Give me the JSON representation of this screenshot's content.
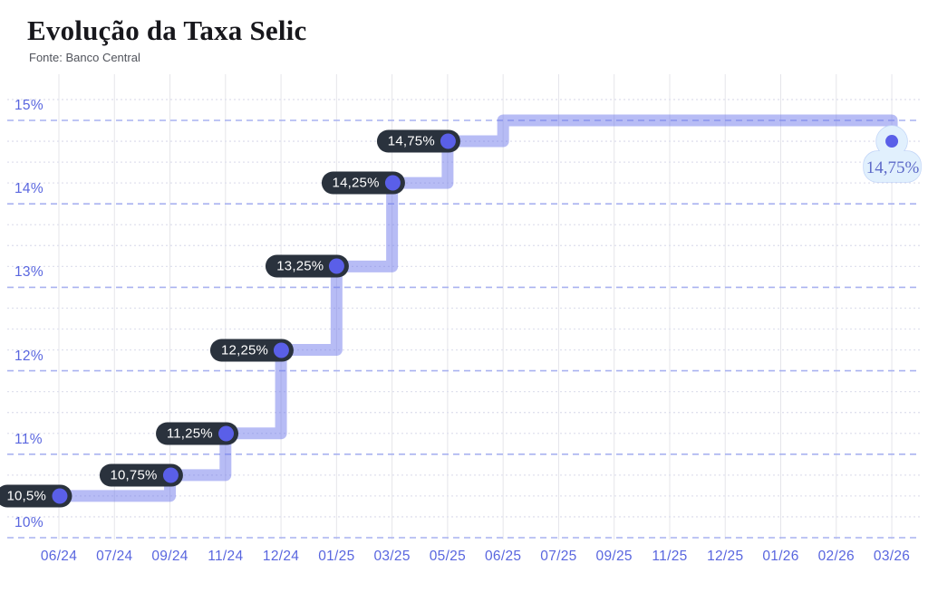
{
  "header": {
    "title": "Evolução da Taxa Selic",
    "source": "Fonte: Banco Central"
  },
  "chart_data": {
    "type": "line",
    "subtype": "step-after",
    "title": "Evolução da Taxa Selic",
    "source": "Fonte: Banco Central",
    "x_ticks": [
      "06/24",
      "07/24",
      "09/24",
      "11/24",
      "12/24",
      "01/25",
      "03/25",
      "05/25",
      "06/25",
      "07/25",
      "09/25",
      "11/25",
      "12/25",
      "01/26",
      "02/26",
      "03/26"
    ],
    "y_ticks": [
      "10%",
      "11%",
      "12%",
      "13%",
      "14%",
      "15%"
    ],
    "y_tick_values": [
      10,
      11,
      12,
      13,
      14,
      15
    ],
    "ylim": [
      10,
      15.25
    ],
    "minor_grid_step": 0.25,
    "grid": {
      "vertical": "solid",
      "major_horizontal": "dashed",
      "minor_horizontal": "dotted"
    },
    "legend": "none",
    "points": [
      {
        "x": "06/24",
        "y": 10.5,
        "label": "10,5%"
      },
      {
        "x": "09/24",
        "y": 10.75,
        "label": "10,75%"
      },
      {
        "x": "11/24",
        "y": 11.25,
        "label": "11,25%"
      },
      {
        "x": "12/24",
        "y": 12.25,
        "label": "12,25%"
      },
      {
        "x": "01/25",
        "y": 13.25,
        "label": "13,25%"
      },
      {
        "x": "03/25",
        "y": 14.25,
        "label": "14,25%"
      },
      {
        "x": "05/25",
        "y": 14.75,
        "label": "14,75%"
      },
      {
        "x": "06/25",
        "y": 15.0,
        "label": null
      },
      {
        "x": "03/26",
        "y": 14.75,
        "label": null
      }
    ],
    "end_tooltip": {
      "x": "03/26",
      "value_label": "14,75%"
    },
    "colors": {
      "axis_label": "#5966df",
      "major_gridline": "#a9b2f0",
      "minor_gridline": "#e0e1ee",
      "vertical_gridline": "#e5e5ea",
      "series_line_rgba": "rgba(104,116,235,0.48)",
      "point_dot": "#5a5fe8",
      "pill_background": "#2a323d",
      "pill_text": "#ffffff",
      "tooltip_fill": "#e1f0fd",
      "tooltip_border": "#c3d6f8",
      "tooltip_text": "#5e6bc9",
      "title_text": "#17171c",
      "source_text": "#50535b"
    }
  }
}
